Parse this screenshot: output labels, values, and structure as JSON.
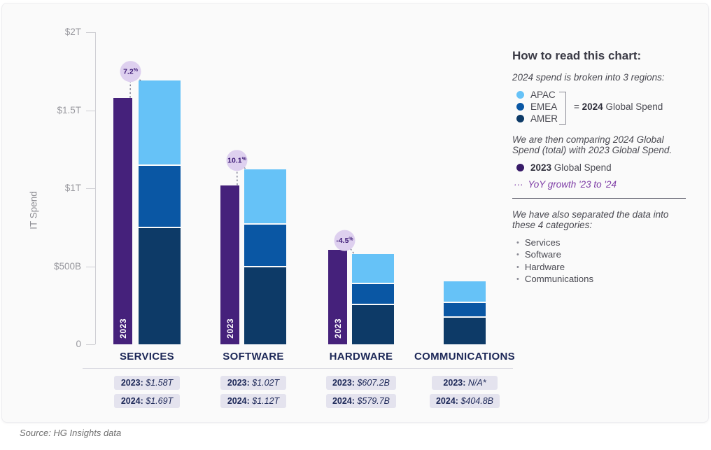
{
  "chart_data": {
    "type": "bar",
    "title": "",
    "ylabel": "IT Spend",
    "grid": false,
    "legend_position": "right",
    "y_axis": {
      "tick_labels": [
        "$2T",
        "$1.5T",
        "$1T",
        "$500B",
        "0"
      ],
      "tick_values_billions": [
        2000,
        1500,
        1000,
        500,
        0
      ],
      "ylim_billions": [
        0,
        2000
      ]
    },
    "categories": [
      "SERVICES",
      "SOFTWARE",
      "HARDWARE",
      "COMMUNICATIONS"
    ],
    "series": {
      "y2023": {
        "legend_bold": "2023",
        "legend_rest": " Global Spend",
        "bar_inner_label": "2023",
        "values_billions": [
          1580,
          1020,
          607.2,
          null
        ],
        "display": [
          "$1.58T",
          "$1.02T",
          "$607.2B",
          "N/A*"
        ]
      },
      "y2024": {
        "totals_billions": [
          1690,
          1120,
          579.7,
          404.8
        ],
        "display": [
          "$1.69T",
          "$1.12T",
          "$579.7B",
          "$404.8B"
        ],
        "regions": [
          {
            "name": "APAC",
            "values_billions": [
              545,
              355,
              193.7,
              141.8
            ]
          },
          {
            "name": "EMEA",
            "values_billions": [
              402,
              270,
              135,
              93
            ]
          },
          {
            "name": "AMER",
            "values_billions": [
              743,
              495,
              251,
              170
            ]
          }
        ]
      },
      "yoy_growth": {
        "label": "YoY growth '23 to '24",
        "values": [
          "7.2%",
          "10.1%",
          "-4.5%",
          null
        ]
      }
    },
    "pills": {
      "prefix_2023": "2023:",
      "prefix_2024": "2024:"
    }
  },
  "colors": {
    "purple_2023": "#45217B",
    "apac": "#66C2F7",
    "emea": "#0A57A4",
    "amer": "#0D3A67",
    "legend_2023_dot": "#371B68",
    "badge_bg": "#DED0EF",
    "badge_text": "#3F1C77",
    "yoy_purple": "#7E3DA6",
    "category_label": "#1C2757",
    "pill_bg": "#E4E3EE",
    "pill_text": "#1C2757",
    "connector": "#73738A",
    "axis": "#CFCFD4"
  },
  "panel": {
    "heading": "How to read this chart:",
    "regions_intro": "2024 spend is broken into 3 regions:",
    "equals_prefix": "= ",
    "equals_bold": "2024",
    "equals_rest": " Global Spend",
    "comparison": "We are then comparing 2024 Global Spend (total) with 2023 Global Spend.",
    "yoy_dots": "···",
    "categories_intro": "We have also separated the data into these 4 categories:",
    "category_bullets": [
      "Services",
      "Software",
      "Hardware",
      "Communications"
    ]
  },
  "footer": {
    "source": "Source: HG Insights data"
  }
}
